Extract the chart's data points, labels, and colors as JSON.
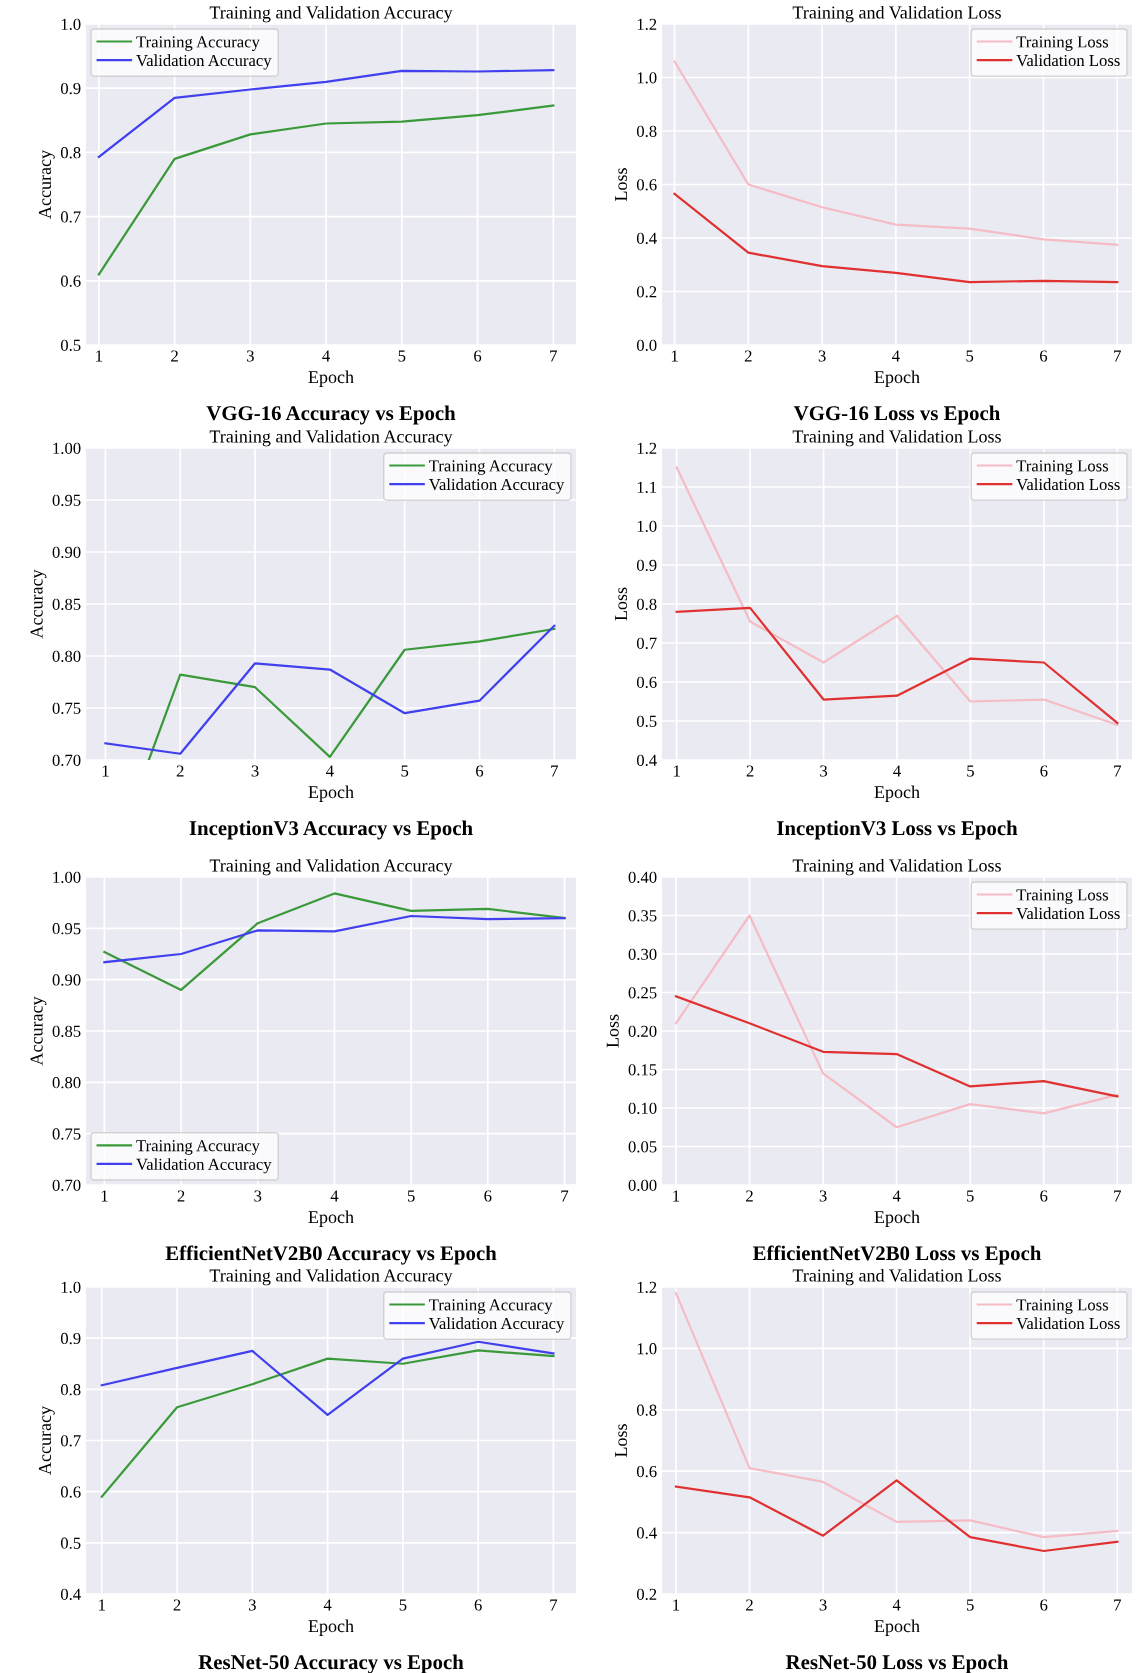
{
  "chart_data": [
    {
      "type": "line",
      "title": "Training and Validation Accuracy",
      "xlabel": "Epoch",
      "ylabel": "Accuracy",
      "annotations": [
        "VGG-16 Accuracy vs Epoch"
      ],
      "x": [
        1,
        2,
        3,
        4,
        5,
        6,
        7
      ],
      "xlim": [
        0.83,
        7.3
      ],
      "xticks": [
        1,
        2,
        3,
        4,
        5,
        6,
        7
      ],
      "ylim": [
        0.5,
        1.0
      ],
      "yticks": [
        0.5,
        0.6,
        0.7,
        0.8,
        0.9,
        {
          "value": 1.0,
          "label": "1.0"
        }
      ],
      "grid": true,
      "legend": "top left",
      "series": [
        {
          "name": "Training Accuracy",
          "color": "#3a9a3a",
          "values": [
            0.61,
            0.79,
            0.828,
            0.845,
            0.848,
            0.858,
            0.873
          ]
        },
        {
          "name": "Validation Accuracy",
          "color": "#4040ee",
          "values": [
            0.793,
            0.885,
            0.898,
            0.91,
            0.927,
            0.926,
            0.928
          ]
        }
      ]
    },
    {
      "type": "line",
      "title": "Training and Validation Loss",
      "xlabel": "Epoch",
      "ylabel": "Loss",
      "annotations": [
        "VGG-16 Loss vs Epoch"
      ],
      "x": [
        1,
        2,
        3,
        4,
        5,
        6,
        7
      ],
      "xlim": [
        0.83,
        7.2
      ],
      "xticks": [
        1,
        2,
        3,
        4,
        5,
        6,
        7
      ],
      "ylim": [
        0.0,
        1.2
      ],
      "yticks": [
        {
          "value": 0,
          "label": "0.0"
        },
        0.2,
        0.4,
        0.6,
        0.8,
        {
          "value": 1.0,
          "label": "1.0"
        },
        1.2
      ],
      "grid": true,
      "legend": "top right",
      "series": [
        {
          "name": "Training Loss",
          "color": "#f5bcc6",
          "values": [
            1.06,
            0.6,
            0.515,
            0.45,
            0.435,
            0.395,
            0.375
          ]
        },
        {
          "name": "Validation Loss",
          "color": "#e03030",
          "values": [
            0.565,
            0.345,
            0.295,
            0.27,
            0.235,
            0.24,
            0.235
          ]
        }
      ]
    },
    {
      "type": "line",
      "title": "Training and Validation Accuracy",
      "xlabel": "Epoch",
      "ylabel": "Accuracy",
      "annotations": [
        "InceptionV3 Accuracy vs Epoch"
      ],
      "x": [
        1,
        2,
        3,
        4,
        5,
        6,
        7
      ],
      "xlim": [
        0.74,
        7.29
      ],
      "xticks": [
        1,
        2,
        3,
        4,
        5,
        6,
        7
      ],
      "ylim": [
        0.7,
        1.0
      ],
      "yticks": [
        {
          "value": 0.7,
          "label": "0.70"
        },
        0.75,
        {
          "value": 0.8,
          "label": "0.80"
        },
        0.85,
        {
          "value": 0.9,
          "label": "0.90"
        },
        0.95,
        {
          "value": 1.0,
          "label": "1.00"
        }
      ],
      "grid": true,
      "legend": "top right",
      "series": [
        {
          "name": "Training Accuracy",
          "color": "#3a9a3a",
          "x": [
            1.58,
            2,
            3,
            4,
            5,
            6,
            7
          ],
          "values": [
            0.7,
            0.782,
            0.77,
            0.703,
            0.806,
            0.814,
            0.826
          ]
        },
        {
          "name": "Validation Accuracy",
          "color": "#4040ee",
          "values": [
            0.716,
            0.706,
            0.793,
            0.787,
            0.745,
            0.757,
            0.829
          ]
        }
      ]
    },
    {
      "type": "line",
      "title": "Training and Validation Loss",
      "xlabel": "Epoch",
      "ylabel": "Loss",
      "annotations": [
        "InceptionV3 Loss vs Epoch"
      ],
      "x": [
        1,
        2,
        3,
        4,
        5,
        6,
        7
      ],
      "xlim": [
        0.8,
        7.2
      ],
      "xticks": [
        1,
        2,
        3,
        4,
        5,
        6,
        7
      ],
      "ylim": [
        0.4,
        1.2
      ],
      "yticks": [
        0.4,
        0.5,
        0.6,
        0.7,
        0.8,
        0.9,
        {
          "value": 1.0,
          "label": "1.0"
        },
        1.1,
        1.2
      ],
      "grid": true,
      "legend": "top right",
      "series": [
        {
          "name": "Training Loss",
          "color": "#f5bcc6",
          "values": [
            1.15,
            0.755,
            0.65,
            0.77,
            0.55,
            0.555,
            0.49
          ]
        },
        {
          "name": "Validation Loss",
          "color": "#e03030",
          "values": [
            0.78,
            0.79,
            0.555,
            0.565,
            0.66,
            0.65,
            0.495
          ]
        }
      ]
    },
    {
      "type": "line",
      "title": "Training and Validation Accuracy",
      "xlabel": "Epoch",
      "ylabel": "Accuracy",
      "annotations": [
        "EfficientNetV2B0 Accuracy vs Epoch"
      ],
      "x": [
        1,
        2,
        3,
        4,
        5,
        6,
        7
      ],
      "xlim": [
        0.76,
        7.15
      ],
      "xticks": [
        1,
        2,
        3,
        4,
        5,
        6,
        7
      ],
      "ylim": [
        0.7,
        1.0
      ],
      "yticks": [
        {
          "value": 0.7,
          "label": "0.70"
        },
        0.75,
        {
          "value": 0.8,
          "label": "0.80"
        },
        0.85,
        {
          "value": 0.9,
          "label": "0.90"
        },
        0.95,
        {
          "value": 1.0,
          "label": "1.00"
        }
      ],
      "grid": true,
      "legend": "bottom left",
      "series": [
        {
          "name": "Training Accuracy",
          "color": "#3a9a3a",
          "values": [
            0.927,
            0.89,
            0.955,
            0.984,
            0.967,
            0.969,
            0.96
          ]
        },
        {
          "name": "Validation Accuracy",
          "color": "#4040ee",
          "values": [
            0.917,
            0.925,
            0.948,
            0.947,
            0.962,
            0.959,
            0.96
          ]
        }
      ]
    },
    {
      "type": "line",
      "title": "Training and Validation Loss",
      "xlabel": "Epoch",
      "ylabel": "Loss",
      "annotations": [
        "EfficientNetV2B0 Loss vs Epoch"
      ],
      "x": [
        1,
        2,
        3,
        4,
        5,
        6,
        7
      ],
      "xlim": [
        0.81,
        7.2
      ],
      "xticks": [
        1,
        2,
        3,
        4,
        5,
        6,
        7
      ],
      "ylim": [
        0.0,
        0.4
      ],
      "yticks": [
        {
          "value": 0,
          "label": "0.00"
        },
        0.05,
        {
          "value": 0.1,
          "label": "0.10"
        },
        0.15,
        {
          "value": 0.2,
          "label": "0.20"
        },
        0.25,
        {
          "value": 0.3,
          "label": "0.30"
        },
        0.35,
        {
          "value": 0.4,
          "label": "0.40"
        }
      ],
      "grid": true,
      "legend": "top right",
      "series": [
        {
          "name": "Training Loss",
          "color": "#f5bcc6",
          "values": [
            0.21,
            0.35,
            0.145,
            0.075,
            0.105,
            0.093,
            0.117
          ]
        },
        {
          "name": "Validation Loss",
          "color": "#e03030",
          "values": [
            0.245,
            0.21,
            0.173,
            0.17,
            0.128,
            0.135,
            0.115
          ]
        }
      ]
    },
    {
      "type": "line",
      "title": "Training and Validation Accuracy",
      "xlabel": "Epoch",
      "ylabel": "Accuracy",
      "annotations": [
        "ResNet-50 Accuracy vs Epoch"
      ],
      "x": [
        1,
        2,
        3,
        4,
        5,
        6,
        7
      ],
      "xlim": [
        0.79,
        7.3
      ],
      "xticks": [
        1,
        2,
        3,
        4,
        5,
        6,
        7
      ],
      "ylim": [
        0.4,
        1.0
      ],
      "yticks": [
        0.4,
        0.5,
        0.6,
        0.7,
        0.8,
        0.9,
        {
          "value": 1.0,
          "label": "1.0"
        }
      ],
      "grid": true,
      "legend": "top right",
      "series": [
        {
          "name": "Training Accuracy",
          "color": "#3a9a3a",
          "values": [
            0.59,
            0.765,
            0.81,
            0.86,
            0.85,
            0.876,
            0.865
          ]
        },
        {
          "name": "Validation Accuracy",
          "color": "#4040ee",
          "values": [
            0.808,
            0.842,
            0.875,
            0.75,
            0.86,
            0.893,
            0.87
          ]
        }
      ]
    },
    {
      "type": "line",
      "title": "Training and Validation Loss",
      "xlabel": "Epoch",
      "ylabel": "Loss",
      "annotations": [
        "ResNet-50 Loss vs Epoch"
      ],
      "x": [
        1,
        2,
        3,
        4,
        5,
        6,
        7
      ],
      "xlim": [
        0.81,
        7.2
      ],
      "xticks": [
        1,
        2,
        3,
        4,
        5,
        6,
        7
      ],
      "ylim": [
        0.2,
        1.2
      ],
      "yticks": [
        0.2,
        0.4,
        0.6,
        0.8,
        {
          "value": 1.0,
          "label": "1.0"
        },
        1.2
      ],
      "grid": true,
      "legend": "top right",
      "series": [
        {
          "name": "Training Loss",
          "color": "#f5bcc6",
          "values": [
            1.18,
            0.61,
            0.565,
            0.435,
            0.44,
            0.385,
            0.405
          ]
        },
        {
          "name": "Validation Loss",
          "color": "#e03030",
          "values": [
            0.55,
            0.515,
            0.39,
            0.57,
            0.385,
            0.34,
            0.37
          ]
        }
      ]
    }
  ]
}
